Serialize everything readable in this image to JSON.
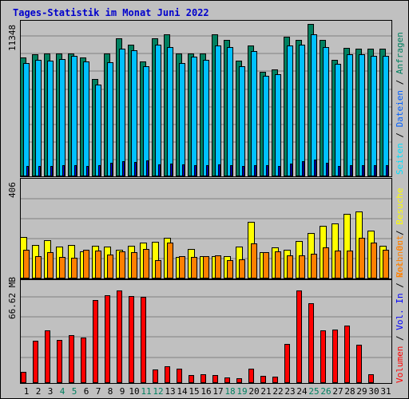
{
  "title": "Tages-Statistik im Monat Juni 2022",
  "colors": {
    "background": "#c0c0c0",
    "title": "#0000cc",
    "anfragen": "#008060",
    "dateien": "#00c0ff",
    "seiten": "#00e0ff",
    "besuche": "#ffff00",
    "rechner": "#ff8000",
    "vol_out": "#ff8000",
    "vol_in": "#0000ff",
    "volumen": "#ff0000",
    "weekend_day": "#008060",
    "weekday_day": "#000000"
  },
  "y_labels": {
    "top": "11348",
    "middle": "406",
    "bottom": "66.62 MB"
  },
  "right_legend": {
    "top": {
      "anfragen": "Anfragen",
      "sep1": " / ",
      "dateien": "Dateien",
      "sep2": " / ",
      "seiten": "Seiten"
    },
    "middle": {
      "besuche": "Besuche",
      "sep1": " / ",
      "rechner": "Rechner"
    },
    "bottom": {
      "vol_out": "Vol. Out",
      "sep1": " / ",
      "vol_in": "Vol. In",
      "sep2": " / ",
      "volumen": "Volumen"
    }
  },
  "chart_data": [
    {
      "type": "bar",
      "name": "hits",
      "categories": [
        "1",
        "2",
        "3",
        "4",
        "5",
        "6",
        "7",
        "8",
        "9",
        "10",
        "11",
        "12",
        "13",
        "14",
        "15",
        "16",
        "17",
        "18",
        "19",
        "20",
        "21",
        "22",
        "23",
        "24",
        "25",
        "26",
        "27",
        "28",
        "29",
        "30",
        "31"
      ],
      "ylim": [
        0,
        11348
      ],
      "ylabel": "11348",
      "series": [
        {
          "name": "Anfragen",
          "values": [
            8860,
            9050,
            9160,
            9130,
            9160,
            8810,
            7200,
            9120,
            10290,
            9800,
            8520,
            10260,
            10600,
            9160,
            9120,
            9120,
            10550,
            10150,
            8630,
            9750,
            7780,
            7970,
            10390,
            10180,
            11348,
            10170,
            8680,
            9570,
            9520,
            9520,
            9500
          ]
        },
        {
          "name": "Dateien",
          "values": [
            8400,
            8690,
            8620,
            8700,
            8960,
            8550,
            6820,
            8490,
            9500,
            9380,
            8180,
            9790,
            9600,
            8430,
            8910,
            8650,
            9750,
            9600,
            8180,
            9300,
            7450,
            7570,
            9720,
            9800,
            10600,
            9630,
            8360,
            9080,
            9100,
            8960,
            8960
          ]
        },
        {
          "name": "Seiten",
          "values": [
            700,
            720,
            740,
            760,
            780,
            700,
            800,
            960,
            1100,
            1000,
            1140,
            820,
            900,
            860,
            800,
            780,
            820,
            760,
            740,
            780,
            760,
            720,
            880,
            1100,
            1200,
            980,
            740,
            800,
            780,
            760,
            760
          ]
        }
      ],
      "weekend_labels": [
        "4",
        "5",
        "11",
        "12",
        "18",
        "19",
        "25",
        "26"
      ]
    },
    {
      "type": "bar",
      "name": "visits",
      "categories": [
        "1",
        "2",
        "3",
        "4",
        "5",
        "6",
        "7",
        "8",
        "9",
        "10",
        "11",
        "12",
        "13",
        "14",
        "15",
        "16",
        "17",
        "18",
        "19",
        "20",
        "21",
        "22",
        "23",
        "24",
        "25",
        "26",
        "27",
        "28",
        "29",
        "30",
        "31"
      ],
      "ylim": [
        0,
        406
      ],
      "ylabel": "406",
      "series": [
        {
          "name": "Besuche",
          "values": [
            174,
            140,
            158,
            133,
            138,
            110,
            134,
            131,
            120,
            134,
            150,
            153,
            170,
            88,
            123,
            90,
            90,
            90,
            131,
            238,
            107,
            130,
            117,
            154,
            191,
            220,
            230,
            270,
            280,
            198,
            134
          ]
        },
        {
          "name": "Rechner",
          "values": [
            117,
            91,
            108,
            88,
            85,
            118,
            115,
            98,
            111,
            108,
            121,
            74,
            150,
            92,
            89,
            92,
            95,
            74,
            78,
            147,
            108,
            110,
            95,
            94,
            100,
            130,
            115,
            115,
            170,
            150,
            118
          ]
        }
      ]
    },
    {
      "type": "bar",
      "name": "volume",
      "categories": [
        "1",
        "2",
        "3",
        "4",
        "5",
        "6",
        "7",
        "8",
        "9",
        "10",
        "11",
        "12",
        "13",
        "14",
        "15",
        "16",
        "17",
        "18",
        "19",
        "20",
        "21",
        "22",
        "23",
        "24",
        "25",
        "26",
        "27",
        "28",
        "29",
        "30",
        "31"
      ],
      "ylim": [
        0,
        66.62
      ],
      "ylabel": "66.62 MB",
      "series": [
        {
          "name": "Volumen",
          "values": [
            7.2,
            28.2,
            35.1,
            28.6,
            31.6,
            29.9,
            55.4,
            58.3,
            61.6,
            57.8,
            57.4,
            8.4,
            10.6,
            9.4,
            4.7,
            5.3,
            5.1,
            3.1,
            2.8,
            9.2,
            4.1,
            3.9,
            25.9,
            61.8,
            53.2,
            35.1,
            35.7,
            38.0,
            25.3,
            5.4,
            0
          ]
        }
      ]
    }
  ]
}
